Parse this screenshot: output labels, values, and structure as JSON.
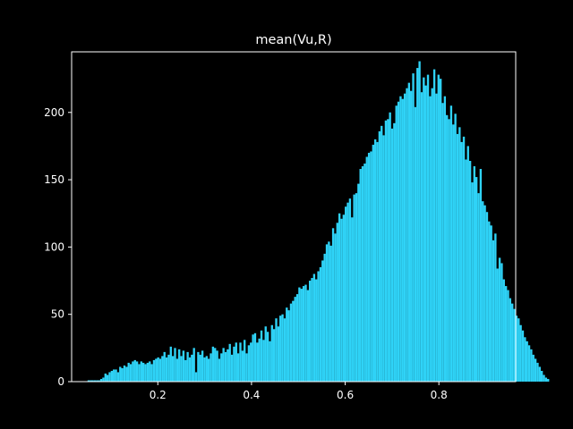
{
  "chart_data": {
    "type": "bar",
    "subtype": "histogram",
    "title": "mean(Vu,R)",
    "xlabel": "",
    "ylabel": "",
    "xlim": [
      0.016,
      0.964
    ],
    "ylim": [
      0,
      245
    ],
    "xticks": [
      0.2,
      0.4,
      0.6,
      0.8
    ],
    "xtick_labels": [
      "0.2",
      "0.4",
      "0.6",
      "0.8"
    ],
    "yticks": [
      0,
      50,
      100,
      150,
      200
    ],
    "ytick_labels": [
      "0",
      "50",
      "100",
      "150",
      "200"
    ],
    "bin_start": 0.05,
    "bin_width": 0.0045,
    "grid": false,
    "legend": "none",
    "colors": {
      "background": "#000000",
      "bar": "#2fd3f7",
      "axes": "#ffffff",
      "text": "#ffffff"
    },
    "values": [
      1,
      1,
      1,
      1,
      1,
      1,
      2,
      3,
      6,
      5,
      7,
      8,
      9,
      9,
      7,
      11,
      10,
      12,
      11,
      14,
      13,
      15,
      16,
      15,
      13,
      15,
      14,
      13,
      14,
      15,
      13,
      16,
      17,
      18,
      17,
      19,
      22,
      18,
      20,
      26,
      19,
      25,
      17,
      24,
      19,
      23,
      16,
      22,
      18,
      20,
      25,
      7,
      22,
      20,
      23,
      18,
      19,
      17,
      21,
      26,
      25,
      23,
      17,
      21,
      25,
      22,
      24,
      28,
      20,
      26,
      29,
      21,
      29,
      23,
      31,
      21,
      27,
      29,
      35,
      36,
      29,
      32,
      38,
      31,
      41,
      37,
      30,
      42,
      39,
      47,
      41,
      49,
      50,
      47,
      55,
      53,
      58,
      60,
      63,
      65,
      70,
      69,
      71,
      72,
      68,
      75,
      77,
      80,
      76,
      82,
      85,
      90,
      95,
      102,
      104,
      101,
      114,
      110,
      118,
      125,
      121,
      124,
      130,
      133,
      136,
      122,
      139,
      140,
      147,
      158,
      160,
      162,
      167,
      170,
      171,
      176,
      180,
      178,
      186,
      190,
      183,
      194,
      195,
      200,
      188,
      192,
      205,
      208,
      212,
      210,
      214,
      218,
      222,
      216,
      229,
      204,
      233,
      238,
      215,
      226,
      220,
      228,
      212,
      218,
      232,
      214,
      228,
      225,
      207,
      212,
      198,
      195,
      205,
      191,
      199,
      184,
      189,
      178,
      182,
      165,
      175,
      164,
      148,
      160,
      152,
      140,
      158,
      134,
      131,
      126,
      119,
      116,
      105,
      110,
      84,
      92,
      88,
      76,
      71,
      68,
      62,
      58,
      54,
      49,
      47,
      42,
      38,
      33,
      30,
      27,
      24,
      20,
      17,
      14,
      11,
      8,
      5,
      3,
      2
    ]
  }
}
